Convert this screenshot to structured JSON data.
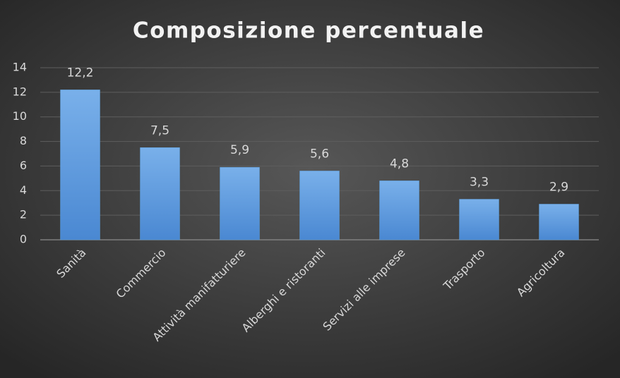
{
  "chart_data": {
    "type": "bar",
    "title": "Composizione percentuale",
    "categories": [
      "Sanità",
      "Commercio",
      "Attività manifatturiere",
      "Alberghi e ristoranti",
      "Servizi alle imprese",
      "Trasporto",
      "Agricoltura"
    ],
    "values": [
      12.2,
      7.5,
      5.9,
      5.6,
      4.8,
      3.3,
      2.9
    ],
    "value_labels": [
      "12,2",
      "7,5",
      "5,9",
      "5,6",
      "4,8",
      "3,3",
      "2,9"
    ],
    "color": "#5b9bd5",
    "ylim": [
      0,
      14
    ],
    "yticks": [
      0,
      2,
      4,
      6,
      8,
      10,
      12,
      14
    ],
    "grid": true
  }
}
